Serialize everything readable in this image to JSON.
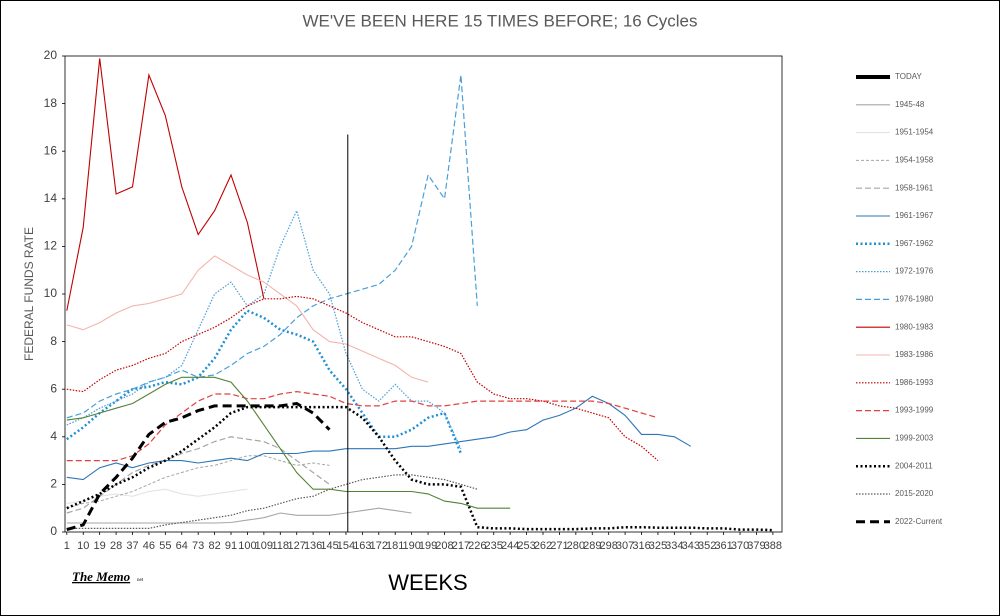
{
  "chart_data": {
    "type": "line",
    "title": "WE'VE BEEN HERE 15 TIMES BEFORE; 16 Cycles",
    "y_label": "FEDERAL FUNDS RATE",
    "x_label": "WEEKS",
    "logo": {
      "text": "The Memo",
      "suffix": "net"
    },
    "xlim": [
      0,
      393
    ],
    "ylim": [
      0,
      20
    ],
    "yticks": [
      0,
      2,
      4,
      6,
      8,
      10,
      12,
      14,
      16,
      18,
      20
    ],
    "xticks": [
      1,
      10,
      19,
      28,
      37,
      46,
      55,
      64,
      73,
      82,
      91,
      100,
      109,
      118,
      127,
      136,
      145,
      154,
      163,
      172,
      181,
      190,
      199,
      208,
      217,
      226,
      235,
      244,
      253,
      262,
      271,
      280,
      289,
      298,
      307,
      316,
      325,
      334,
      343,
      352,
      361,
      370,
      379,
      388
    ],
    "x": [
      1,
      10,
      19,
      28,
      37,
      46,
      55,
      64,
      73,
      82,
      91,
      100,
      109,
      118,
      127,
      136,
      145,
      154,
      163,
      172,
      181,
      190,
      199,
      208,
      217,
      226,
      235,
      244,
      253,
      262,
      271,
      280,
      289,
      298,
      307,
      316,
      325,
      334,
      343,
      352,
      361,
      370,
      379,
      388
    ],
    "today": {
      "label": "TODAY",
      "x": 155,
      "y_top": 16.7,
      "color": "#000000"
    },
    "series": [
      {
        "name": "1945-48",
        "color": "#a6a6a6",
        "style": "solid",
        "values": [
          0.38,
          0.38,
          0.38,
          0.38,
          0.38,
          0.38,
          0.38,
          0.38,
          0.38,
          0.38,
          0.4,
          0.5,
          0.6,
          0.8,
          0.7,
          0.7,
          0.7,
          0.8,
          0.9,
          1.0,
          0.9,
          0.8,
          null,
          null,
          null,
          null,
          null,
          null,
          null,
          null,
          null,
          null,
          null,
          null,
          null,
          null,
          null,
          null,
          null,
          null,
          null,
          null,
          null,
          null
        ]
      },
      {
        "name": "1951-1954",
        "color": "#e3e3e3",
        "style": "solid",
        "values": [
          1.2,
          1.3,
          1.5,
          1.6,
          1.5,
          1.7,
          1.8,
          1.6,
          1.5,
          1.6,
          1.7,
          1.8,
          null,
          null,
          null,
          null,
          null,
          null,
          null,
          null,
          null,
          null,
          null,
          null,
          null,
          null,
          null,
          null,
          null,
          null,
          null,
          null,
          null,
          null,
          null,
          null,
          null,
          null,
          null,
          null,
          null,
          null,
          null,
          null
        ]
      },
      {
        "name": "1954-1958",
        "color": "#a6a6a6",
        "style": "dashed-short",
        "values": [
          1.0,
          1.2,
          1.3,
          1.5,
          1.7,
          2.0,
          2.3,
          2.5,
          2.7,
          2.8,
          3.0,
          3.2,
          3.2,
          3.0,
          2.8,
          2.9,
          2.8,
          null,
          null,
          null,
          null,
          null,
          null,
          null,
          null,
          null,
          null,
          null,
          null,
          null,
          null,
          null,
          null,
          null,
          null,
          null,
          null,
          null,
          null,
          null,
          null,
          null,
          null,
          null
        ]
      },
      {
        "name": "1958-1961",
        "color": "#a6a6a6",
        "style": "dashed",
        "values": [
          0.8,
          1.0,
          1.5,
          2.0,
          2.5,
          2.8,
          3.0,
          3.3,
          3.5,
          3.8,
          4.0,
          3.9,
          3.8,
          3.5,
          3.0,
          2.5,
          2.0,
          null,
          null,
          null,
          null,
          null,
          null,
          null,
          null,
          null,
          null,
          null,
          null,
          null,
          null,
          null,
          null,
          null,
          null,
          null,
          null,
          null,
          null,
          null,
          null,
          null,
          null,
          null
        ]
      },
      {
        "name": "1961-1967",
        "color": "#2e75b6",
        "style": "solid",
        "values": [
          2.3,
          2.2,
          2.7,
          2.9,
          2.7,
          2.9,
          3.0,
          3.0,
          2.9,
          3.0,
          3.1,
          3.0,
          3.3,
          3.3,
          3.3,
          3.4,
          3.4,
          3.5,
          3.5,
          3.5,
          3.5,
          3.6,
          3.6,
          3.7,
          3.8,
          3.9,
          4.0,
          4.2,
          4.3,
          4.7,
          4.9,
          5.2,
          5.7,
          5.4,
          4.9,
          4.1,
          4.1,
          4.0,
          3.6,
          null,
          null,
          null,
          null,
          null
        ]
      },
      {
        "name": "1967-1962",
        "color": "#1f8fd6",
        "style": "dotted-thick",
        "values": [
          3.9,
          4.4,
          5.0,
          5.5,
          6.0,
          6.1,
          6.3,
          6.2,
          6.5,
          7.3,
          8.5,
          9.3,
          9.0,
          8.5,
          8.3,
          8.0,
          6.8,
          6.0,
          5.0,
          4.0,
          4.0,
          4.3,
          4.8,
          5.0,
          3.3,
          null,
          null,
          null,
          null,
          null,
          null,
          null,
          null,
          null,
          null,
          null,
          null,
          null,
          null,
          null,
          null,
          null,
          null,
          null
        ]
      },
      {
        "name": "1972-1976",
        "color": "#4a9fd8",
        "style": "dotted",
        "values": [
          4.5,
          4.8,
          5.2,
          5.5,
          5.8,
          6.3,
          6.5,
          7.0,
          8.5,
          10.0,
          10.5,
          9.5,
          10.0,
          12.0,
          13.5,
          11.0,
          10.0,
          7.5,
          6.0,
          5.5,
          6.2,
          5.5,
          5.5,
          5.0,
          3.5,
          null,
          null,
          null,
          null,
          null,
          null,
          null,
          null,
          null,
          null,
          null,
          null,
          null,
          null,
          null,
          null,
          null,
          null,
          null
        ]
      },
      {
        "name": "1976-1980",
        "color": "#4a9fd8",
        "style": "dashed",
        "values": [
          4.8,
          5.0,
          5.5,
          5.8,
          6.0,
          6.3,
          6.5,
          6.8,
          6.5,
          6.6,
          7.0,
          7.5,
          7.8,
          8.3,
          9.0,
          9.5,
          9.8,
          10.0,
          10.2,
          10.4,
          11.0,
          12.0,
          15.0,
          14.0,
          19.2,
          9.5,
          null,
          null,
          null,
          null,
          null,
          null,
          null,
          null,
          null,
          null,
          null,
          null,
          null,
          null,
          null,
          null,
          null,
          null
        ]
      },
      {
        "name": "1980-1983",
        "color": "#c00000",
        "style": "solid",
        "values": [
          9.3,
          12.8,
          19.9,
          14.2,
          14.5,
          19.2,
          17.5,
          14.5,
          12.5,
          13.5,
          15.0,
          13.0,
          9.8,
          null,
          null,
          null,
          null,
          null,
          null,
          null,
          null,
          null,
          null,
          null,
          null,
          null,
          null,
          null,
          null,
          null,
          null,
          null,
          null,
          null,
          null,
          null,
          null,
          null,
          null,
          null,
          null,
          null,
          null,
          null
        ]
      },
      {
        "name": "1983-1986",
        "color": "#f4b4ac",
        "style": "solid",
        "values": [
          8.7,
          8.5,
          8.8,
          9.2,
          9.5,
          9.6,
          9.8,
          10.0,
          11.0,
          11.6,
          11.2,
          10.8,
          10.5,
          10.0,
          9.5,
          8.5,
          8.0,
          7.9,
          7.6,
          7.3,
          7.0,
          6.5,
          6.3,
          null,
          null,
          null,
          null,
          null,
          null,
          null,
          null,
          null,
          null,
          null,
          null,
          null,
          null,
          null,
          null,
          null,
          null,
          null,
          null,
          null
        ]
      },
      {
        "name": "1986-1993",
        "color": "#c00000",
        "style": "dotted",
        "values": [
          6.0,
          5.9,
          6.4,
          6.8,
          7.0,
          7.3,
          7.5,
          8.0,
          8.3,
          8.6,
          9.0,
          9.5,
          9.8,
          9.8,
          9.9,
          9.8,
          9.5,
          9.2,
          8.8,
          8.5,
          8.2,
          8.2,
          8.0,
          7.8,
          7.5,
          6.3,
          5.8,
          5.6,
          5.6,
          5.5,
          5.3,
          5.2,
          5.0,
          4.8,
          4.0,
          3.6,
          3.0,
          null,
          null,
          null,
          null,
          null,
          null,
          null
        ]
      },
      {
        "name": "1993-1999",
        "color": "#e04040",
        "style": "dashed",
        "values": [
          3.0,
          3.0,
          3.0,
          3.0,
          3.2,
          3.7,
          4.5,
          5.0,
          5.5,
          5.8,
          5.8,
          5.6,
          5.6,
          5.8,
          5.9,
          5.8,
          5.7,
          5.4,
          5.3,
          5.3,
          5.5,
          5.5,
          5.3,
          5.3,
          5.4,
          5.5,
          5.5,
          5.5,
          5.5,
          5.5,
          5.5,
          5.5,
          5.5,
          5.4,
          5.2,
          5.0,
          4.8,
          null,
          null,
          null,
          null,
          null,
          null,
          null
        ]
      },
      {
        "name": "1999-2003",
        "color": "#548235",
        "style": "solid",
        "values": [
          4.7,
          4.8,
          5.0,
          5.2,
          5.4,
          5.8,
          6.2,
          6.5,
          6.5,
          6.5,
          6.3,
          5.5,
          4.5,
          3.5,
          2.5,
          1.8,
          1.8,
          1.7,
          1.7,
          1.7,
          1.7,
          1.7,
          1.6,
          1.3,
          1.2,
          1.0,
          1.0,
          1.0,
          null,
          null,
          null,
          null,
          null,
          null,
          null,
          null,
          null,
          null,
          null,
          null,
          null,
          null,
          null,
          null
        ]
      },
      {
        "name": "2004-2011",
        "color": "#000000",
        "style": "dotted-thick",
        "values": [
          1.0,
          1.3,
          1.6,
          2.0,
          2.3,
          2.7,
          3.0,
          3.4,
          3.9,
          4.4,
          5.0,
          5.25,
          5.25,
          5.25,
          5.25,
          5.25,
          5.25,
          5.25,
          4.8,
          4.0,
          3.0,
          2.2,
          2.0,
          2.0,
          1.9,
          0.2,
          0.15,
          0.15,
          0.12,
          0.12,
          0.12,
          0.12,
          0.15,
          0.15,
          0.2,
          0.2,
          0.18,
          0.18,
          0.18,
          0.15,
          0.15,
          0.1,
          0.1,
          0.08
        ]
      },
      {
        "name": "2015-2020",
        "color": "#595959",
        "style": "dotted",
        "values": [
          0.15,
          0.15,
          0.15,
          0.15,
          0.15,
          0.15,
          0.3,
          0.4,
          0.5,
          0.6,
          0.7,
          0.9,
          1.0,
          1.2,
          1.4,
          1.5,
          1.8,
          2.0,
          2.2,
          2.3,
          2.4,
          2.4,
          2.3,
          2.2,
          2.0,
          1.8,
          null,
          null,
          null,
          null,
          null,
          null,
          null,
          null,
          null,
          null,
          null,
          null,
          null,
          null,
          null,
          null,
          null,
          null
        ]
      },
      {
        "name": "2022-Current",
        "color": "#000000",
        "style": "dashed-thick",
        "values": [
          0.1,
          0.3,
          1.6,
          2.3,
          3.1,
          4.1,
          4.6,
          4.8,
          5.1,
          5.3,
          5.3,
          5.3,
          5.3,
          5.3,
          5.4,
          5.0,
          4.3,
          null,
          null,
          null,
          null,
          null,
          null,
          null,
          null,
          null,
          null,
          null,
          null,
          null,
          null,
          null,
          null,
          null,
          null,
          null,
          null,
          null,
          null,
          null,
          null,
          null,
          null,
          null
        ]
      }
    ]
  }
}
